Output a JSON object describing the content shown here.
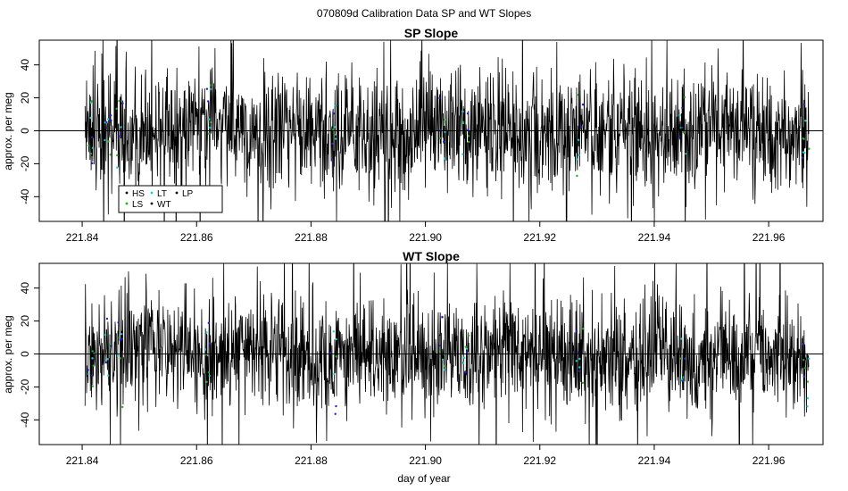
{
  "figure": {
    "title": "070809d   Calibration Data SP and WT Slopes",
    "xlabel": "day of year"
  },
  "chart_data": [
    {
      "type": "line",
      "title": "SP Slope",
      "ylabel": "approx. per meg",
      "xlim": [
        221.8325,
        221.9695
      ],
      "ylim": [
        -55,
        55
      ],
      "xticks": [
        "221.84",
        "221.86",
        "221.88",
        "221.90",
        "221.92",
        "221.94",
        "221.96"
      ],
      "yticks": [
        "-40",
        "-20",
        "0",
        "20",
        "40"
      ],
      "grid": false,
      "zero_line": 0,
      "legend": {
        "placement": "bottom-left",
        "entries": [
          {
            "label": "HS",
            "color": "#000000"
          },
          {
            "label": "LS",
            "color": "#22aa22"
          },
          {
            "label": "LT",
            "color": "#22cccc"
          },
          {
            "label": "WT",
            "color": "#000000"
          },
          {
            "label": "LP",
            "color": "#000000"
          }
        ]
      },
      "series": [
        {
          "color": "#000000",
          "x_start": 221.8405,
          "x_end": 221.967,
          "x": [
            221.8405,
            221.85,
            221.86,
            221.87,
            221.88,
            221.89,
            221.9,
            221.91,
            221.92,
            221.93,
            221.94,
            221.95,
            221.96,
            221.967
          ],
          "values": [
            2,
            -5,
            8,
            -3,
            4,
            -6,
            1,
            5,
            -4,
            3,
            -2,
            6,
            -1,
            0
          ],
          "amplitude": 30
        }
      ]
    },
    {
      "type": "line",
      "title": "WT Slope",
      "ylabel": "approx. per meg",
      "xlim": [
        221.8325,
        221.9695
      ],
      "ylim": [
        -55,
        55
      ],
      "xticks": [
        "221.84",
        "221.86",
        "221.88",
        "221.90",
        "221.92",
        "221.94",
        "221.96"
      ],
      "yticks": [
        "-40",
        "-20",
        "0",
        "20",
        "40"
      ],
      "grid": false,
      "zero_line": 0,
      "series": [
        {
          "color": "#000000",
          "x_start": 221.8405,
          "x_end": 221.967,
          "x": [
            221.8405,
            221.85,
            221.86,
            221.87,
            221.88,
            221.89,
            221.9,
            221.91,
            221.92,
            221.93,
            221.94,
            221.95,
            221.96,
            221.967
          ],
          "values": [
            -3,
            4,
            -2,
            6,
            -5,
            2,
            -1,
            3,
            5,
            -4,
            1,
            -3,
            2,
            -6
          ],
          "amplitude": 30
        }
      ]
    }
  ],
  "colors": {
    "trace": "#000000",
    "ls_points": "#22aa22",
    "lt_points": "#22cccc",
    "hs_points": "#2222cc"
  }
}
